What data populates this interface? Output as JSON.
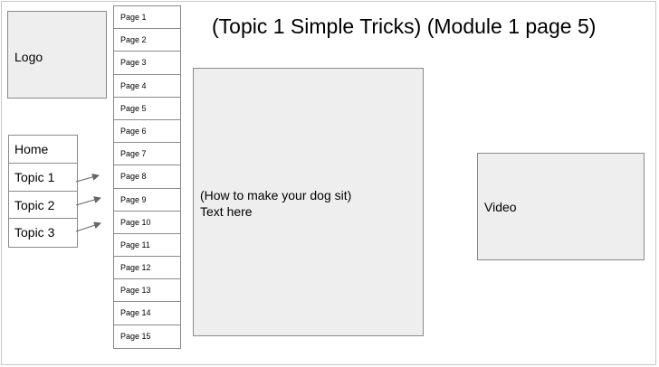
{
  "title": "(Topic 1 Simple Tricks) (Module 1 page 5)",
  "logo_label": "Logo",
  "video_label": "Video",
  "content": {
    "line1": "(How to make your dog sit)",
    "line2": "Text here"
  },
  "nav": [
    "Home",
    "Topic 1",
    "Topic 2",
    "Topic 3"
  ],
  "pages": [
    "Page 1",
    "Page 2",
    "Page 3",
    "Page 4",
    "Page 5",
    "Page 6",
    "Page 7",
    "Page 8",
    "Page 9",
    "Page 10",
    "Page 11",
    "Page 12",
    "Page 13",
    "Page 14",
    "Page 15"
  ]
}
